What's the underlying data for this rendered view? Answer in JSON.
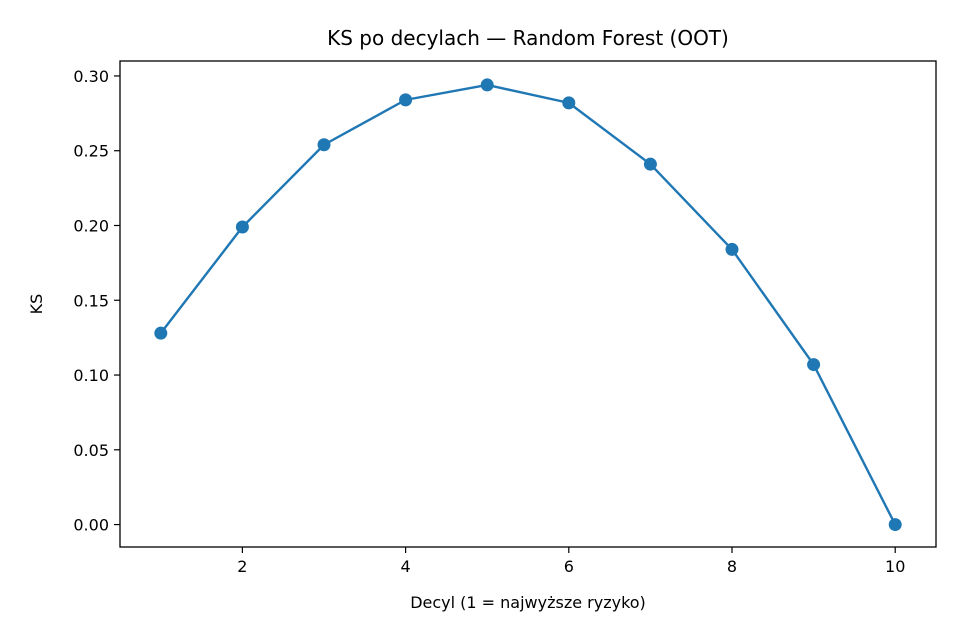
{
  "chart_data": {
    "type": "line",
    "title": "KS po decylach — Random Forest (OOT)",
    "xlabel": "Decyl (1 = najwyższe ryzyko)",
    "ylabel": "KS",
    "xlim": [
      0.5,
      10.5
    ],
    "ylim": [
      -0.015,
      0.31
    ],
    "xticks": [
      2,
      4,
      6,
      8,
      10
    ],
    "xtick_labels": [
      "2",
      "4",
      "6",
      "8",
      "10"
    ],
    "yticks": [
      0.0,
      0.05,
      0.1,
      0.15,
      0.2,
      0.25,
      0.3
    ],
    "ytick_labels": [
      "0.00",
      "0.05",
      "0.10",
      "0.15",
      "0.20",
      "0.25",
      "0.30"
    ],
    "grid": false,
    "series": [
      {
        "color": "#1f77b4",
        "marker": "circle",
        "x": [
          1,
          2,
          3,
          4,
          5,
          6,
          7,
          8,
          9,
          10
        ],
        "y": [
          0.128,
          0.199,
          0.254,
          0.284,
          0.294,
          0.282,
          0.241,
          0.184,
          0.107,
          0.0
        ]
      }
    ]
  }
}
